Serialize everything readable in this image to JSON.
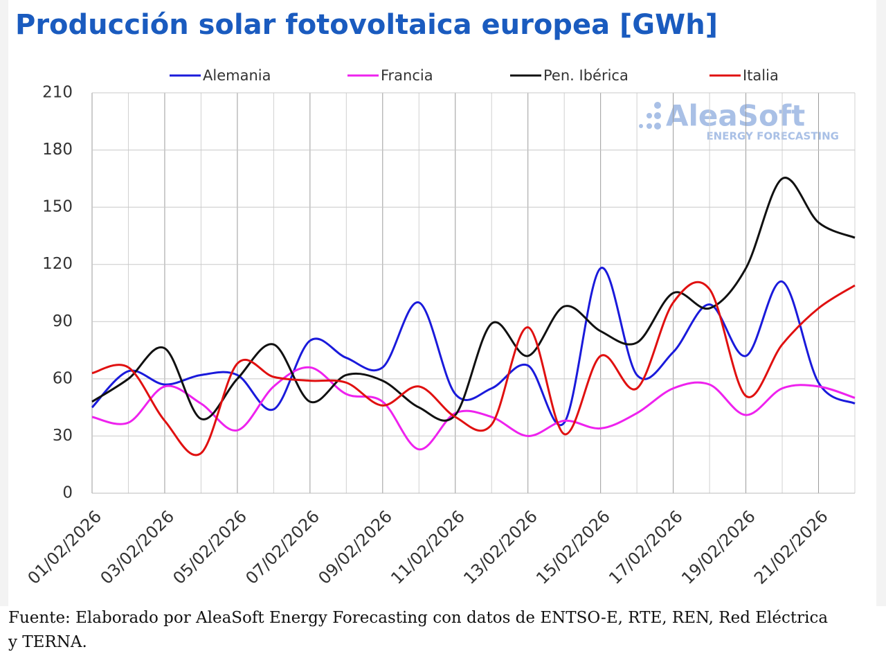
{
  "chart_data": {
    "type": "line",
    "title": "Producción solar fotovoltaica europea [GWh]",
    "watermark": "AleaSoft",
    "watermark_sub": "ENERGY FORECASTING",
    "source": "Fuente: Elaborado por AleaSoft Energy Forecasting con datos de ENTSO-E, RTE, REN, Red Eléctrica y TERNA.",
    "categories": [
      "01/02/2026",
      null,
      "03/02/2026",
      null,
      "05/02/2026",
      null,
      "07/02/2026",
      null,
      "09/02/2026",
      null,
      "11/02/2026",
      null,
      "13/02/2026",
      null,
      "15/02/2026",
      null,
      "17/02/2026",
      null,
      "19/02/2026",
      null,
      "21/02/2026",
      null
    ],
    "ylim": [
      0,
      210
    ],
    "yticks": [
      0,
      30,
      60,
      90,
      120,
      150,
      180,
      210
    ],
    "grid": true,
    "legend": "top",
    "series": [
      {
        "name": "Alemania",
        "color": "#1a1adb",
        "values": [
          45,
          64,
          57,
          62,
          62,
          44,
          80,
          71,
          66,
          100,
          52,
          55,
          67,
          37,
          118,
          62,
          74,
          99,
          72,
          111,
          58,
          47
        ]
      },
      {
        "name": "Francia",
        "color": "#ee22ee",
        "values": [
          40,
          37,
          56,
          47,
          33,
          56,
          66,
          52,
          48,
          23,
          42,
          40,
          30,
          38,
          34,
          42,
          55,
          57,
          41,
          55,
          56,
          50
        ]
      },
      {
        "name": "Pen. Ibérica",
        "color": "#111111",
        "values": [
          48,
          60,
          76,
          39,
          60,
          78,
          48,
          62,
          59,
          45,
          41,
          89,
          72,
          98,
          85,
          79,
          105,
          97,
          118,
          165,
          142,
          134
        ]
      },
      {
        "name": "Italia",
        "color": "#e01010",
        "values": [
          63,
          66,
          38,
          21,
          68,
          61,
          59,
          58,
          46,
          56,
          40,
          36,
          87,
          31,
          72,
          55,
          100,
          107,
          51,
          78,
          97,
          109
        ]
      }
    ]
  }
}
